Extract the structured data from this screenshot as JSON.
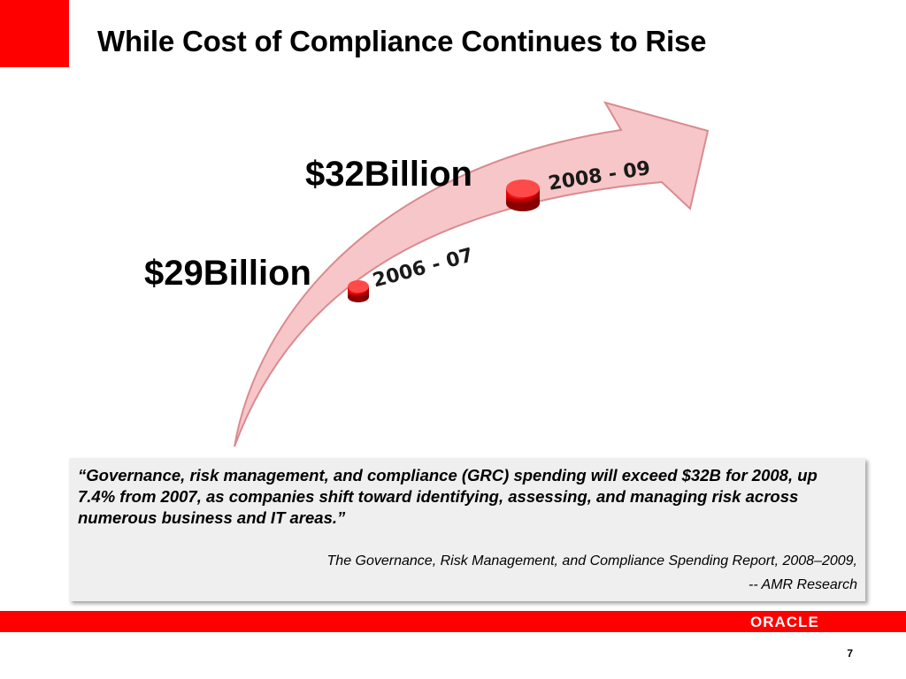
{
  "slide": {
    "title": "While Cost of Compliance Continues to Rise",
    "page_number": "7"
  },
  "timeline": {
    "points": [
      {
        "period": "2006 - 07",
        "amount": "$29Billion"
      },
      {
        "period": "2008 - 09",
        "amount": "$32Billion"
      }
    ]
  },
  "quote": {
    "text": "“Governance, risk management, and compliance (GRC) spending will exceed $32B for 2008, up 7.4% from 2007, as companies shift toward identifying, assessing, and managing risk across numerous business and IT areas.”",
    "source": "The Governance, Risk Management, and Compliance Spending Report, 2008–2009,",
    "attribution": "-- AMR Research"
  },
  "footer": {
    "logo_text": "ORACLE"
  },
  "colors": {
    "brand_red": "#ff0000",
    "arrow_fill": "#f7c6c8",
    "quote_background": "#efefef"
  }
}
